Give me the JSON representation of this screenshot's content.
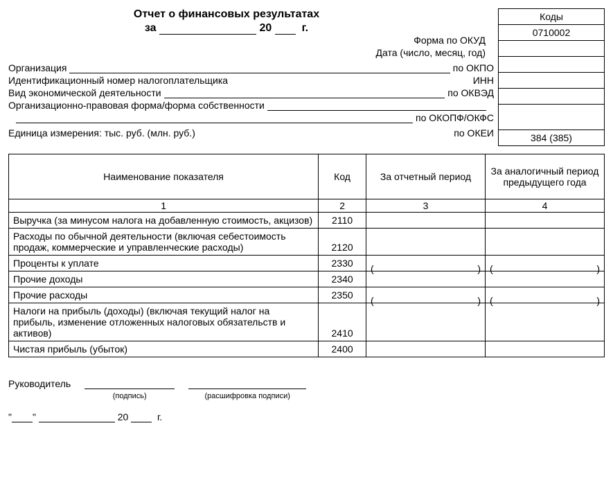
{
  "title": {
    "line1": "Отчет о финансовых результатах",
    "za": "за",
    "year_prefix": "20",
    "year_suffix": "г."
  },
  "codes": {
    "header": "Коды",
    "okud_value": "0710002",
    "okei_value": "384 (385)"
  },
  "header_labels": {
    "form_okud": "Форма по ОКУД",
    "date": "Дата (число, месяц, год)",
    "org": "Организация",
    "po_okpo": "по ОКПО",
    "inn_left": "Идентификационный номер налогоплательщика",
    "inn_right": "ИНН",
    "activity": "Вид экономической деятельности",
    "po_okved": "по ОКВЭД",
    "legal_form": "Организационно-правовая форма/форма собственности",
    "po_okopf": "по ОКОПФ/ОКФС",
    "unit": "Единица измерения: тыс. руб. (млн. руб.)",
    "po_okei": "по ОКЕИ"
  },
  "table": {
    "columns": {
      "name": "Наименование показателя",
      "code": "Код",
      "current": "За отчетный период",
      "prev": "За аналогичный период предыдущего года"
    },
    "num_row": {
      "c1": "1",
      "c2": "2",
      "c3": "3",
      "c4": "4"
    },
    "rows": [
      {
        "name": "Выручка (за минусом налога на добавленную стоимость, акцизов)",
        "code": "2110",
        "paren": false
      },
      {
        "name": "Расходы по обычной деятельности (включая себестоимость продаж, коммерческие и управленческие расходы)",
        "code": "2120",
        "paren": false
      },
      {
        "name": "Проценты к уплате",
        "code": "2330",
        "paren": true
      },
      {
        "name": "Прочие доходы",
        "code": "2340",
        "paren": false
      },
      {
        "name": "Прочие расходы",
        "code": "2350",
        "paren": true
      },
      {
        "name": "Налоги на прибыль (доходы) (включая текущий налог на прибыль, изменение отложенных налоговых обязательств и активов)",
        "code": "2410",
        "paren": false
      },
      {
        "name": "Чистая прибыль (убыток)",
        "code": "2400",
        "paren": false
      }
    ],
    "col_widths": {
      "name": "52%",
      "code": "8%",
      "current": "20%",
      "prev": "20%"
    }
  },
  "signature": {
    "leader": "Руководитель",
    "sign_caption": "(подпись)",
    "decode_caption": "(расшифровка подписи)",
    "year_prefix": "20",
    "year_suffix": "г."
  },
  "style": {
    "border_color": "#000000",
    "background": "#ffffff",
    "font": "Arial",
    "base_fontsize": 14,
    "title_fontsize": 16
  }
}
